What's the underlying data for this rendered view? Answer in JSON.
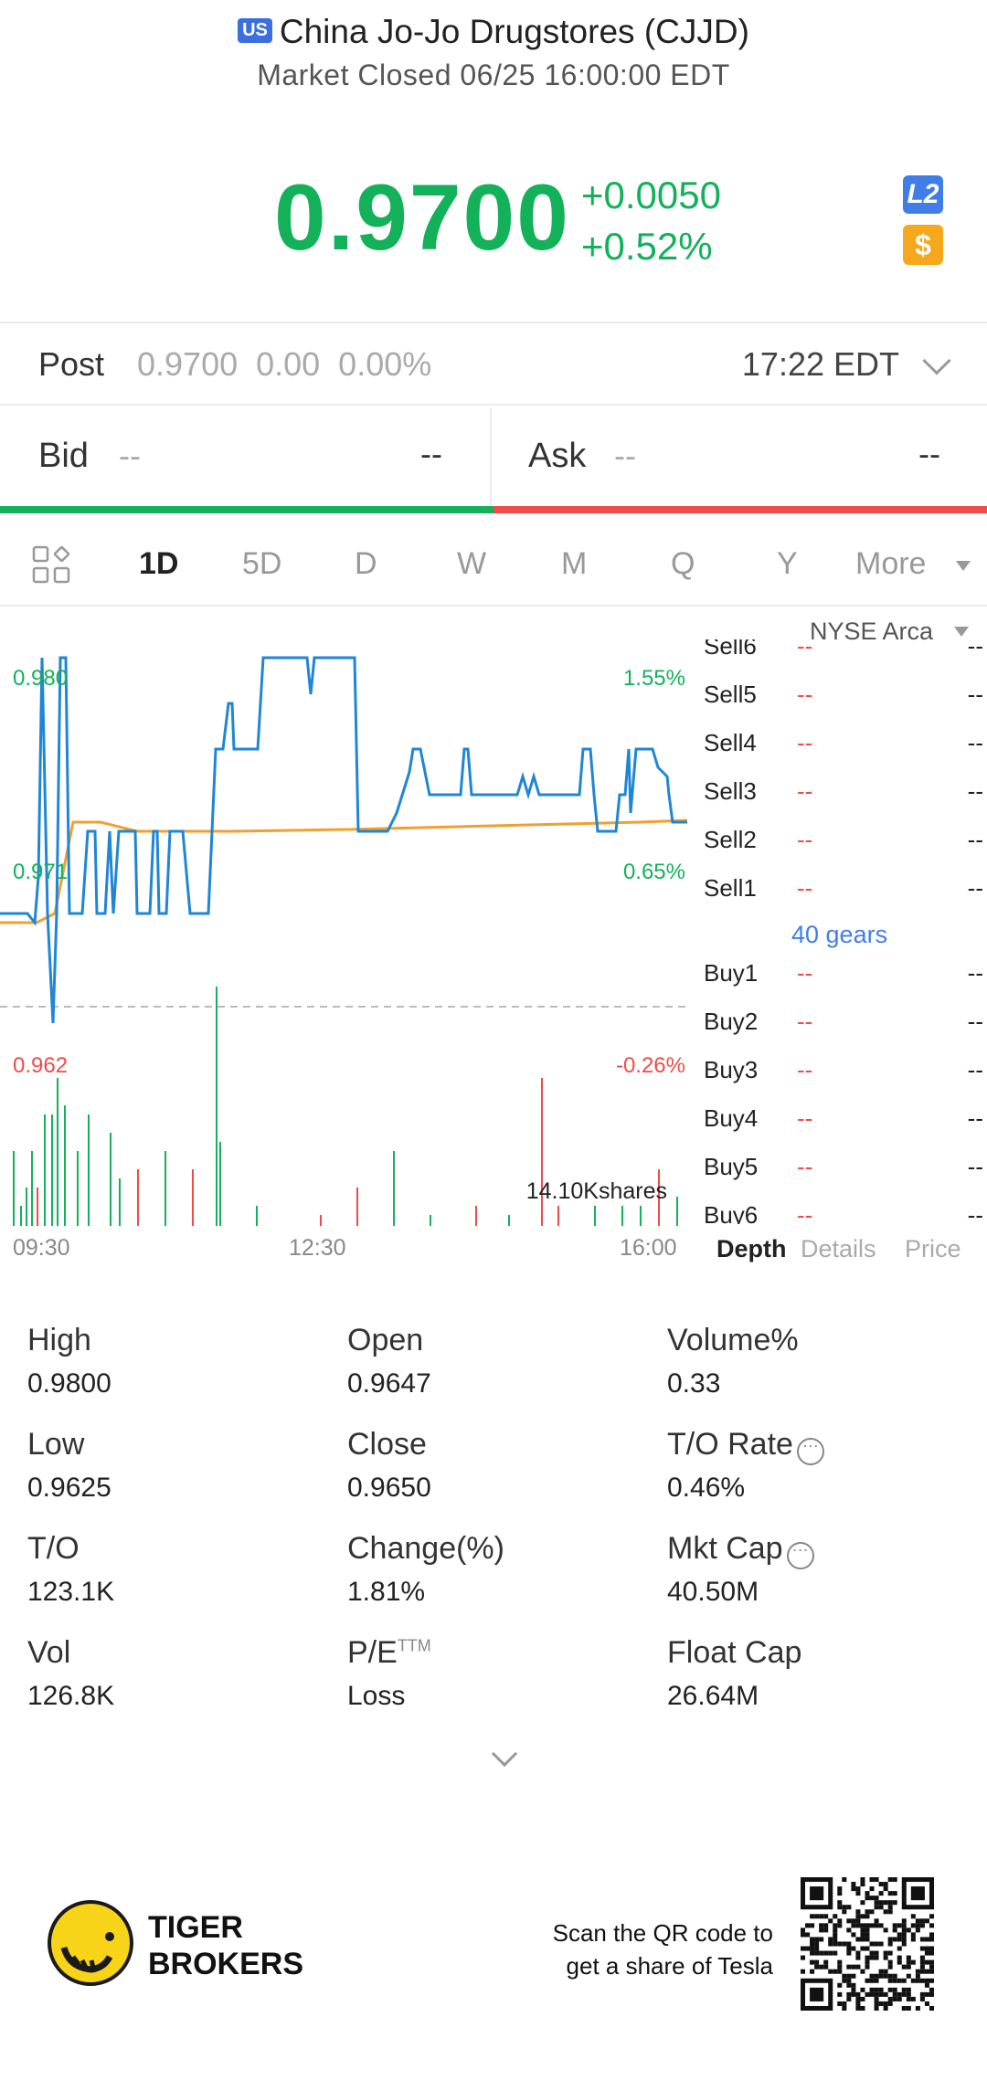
{
  "header": {
    "market_badge": "US",
    "title": "China Jo-Jo Drugstores (CJJD)",
    "status": "Market Closed 06/25 16:00:00 EDT"
  },
  "quote": {
    "price": "0.9700",
    "change": "+0.0050",
    "change_pct": "+0.52%",
    "l2_badge": "L2",
    "dollar_badge": "$"
  },
  "post": {
    "label": "Post",
    "values": "0.9700  0.00  0.00%",
    "time": "17:22 EDT"
  },
  "bidask": {
    "bid_label": "Bid",
    "bid_dash": "--",
    "bid_value": "--",
    "ask_label": "Ask",
    "ask_dash": "--",
    "ask_value": "--"
  },
  "periods": [
    "1D",
    "5D",
    "D",
    "W",
    "M",
    "Q",
    "Y",
    "More"
  ],
  "exchange": "NYSE Arca",
  "chart_data": {
    "type": "line",
    "series": [],
    "ylim": [
      0.962,
      0.98
    ],
    "x_ticks": [
      "09:30",
      "12:30",
      "16:00"
    ],
    "y_labels_left": [
      "0.980",
      "0.971",
      "0.962"
    ],
    "y_labels_right": [
      "1.55%",
      "0.65%",
      "-0.26%"
    ],
    "volume_label": "14.10Kshares"
  },
  "depth": {
    "sell": [
      {
        "label": "Sell6",
        "price": "--",
        "qty": "--"
      },
      {
        "label": "Sell5",
        "price": "--",
        "qty": "--"
      },
      {
        "label": "Sell4",
        "price": "--",
        "qty": "--"
      },
      {
        "label": "Sell3",
        "price": "--",
        "qty": "--"
      },
      {
        "label": "Sell2",
        "price": "--",
        "qty": "--"
      },
      {
        "label": "Sell1",
        "price": "--",
        "qty": "--"
      }
    ],
    "gears": "40 gears",
    "buy": [
      {
        "label": "Buy1",
        "price": "--",
        "qty": "--"
      },
      {
        "label": "Buy2",
        "price": "--",
        "qty": "--"
      },
      {
        "label": "Buy3",
        "price": "--",
        "qty": "--"
      },
      {
        "label": "Buy4",
        "price": "--",
        "qty": "--"
      },
      {
        "label": "Buy5",
        "price": "--",
        "qty": "--"
      },
      {
        "label": "Buy6",
        "price": "--",
        "qty": "--"
      }
    ],
    "tabs": [
      "Depth",
      "Details",
      "Price"
    ]
  },
  "stats": [
    {
      "k": "High",
      "v": "0.9800"
    },
    {
      "k": "Open",
      "v": "0.9647"
    },
    {
      "k": "Volume%",
      "v": "0.33"
    },
    {
      "k": "Low",
      "v": "0.9625"
    },
    {
      "k": "Close",
      "v": "0.9650"
    },
    {
      "k": "T/O Rate",
      "v": "0.46%"
    },
    {
      "k": "T/O",
      "v": "123.1K"
    },
    {
      "k": "Change(%)",
      "v": "1.81%"
    },
    {
      "k": "Mkt Cap",
      "v": "40.50M"
    },
    {
      "k": "Vol",
      "v": "126.8K"
    },
    {
      "k": "P/E",
      "v": "Loss"
    },
    {
      "k": "Float Cap",
      "v": "26.64M"
    }
  ],
  "pe_sup": "TTM",
  "footer": {
    "brand_line1": "TIGER",
    "brand_line2": "BROKERS",
    "scan_line1": "Scan the QR code to",
    "scan_line2": "get a share of Tesla"
  },
  "colors": {
    "up": "#13b15a",
    "down": "#ee4b4b",
    "price_line": "#1f86d6",
    "avg_line": "#f0a030",
    "accent": "#3f7ee8"
  }
}
